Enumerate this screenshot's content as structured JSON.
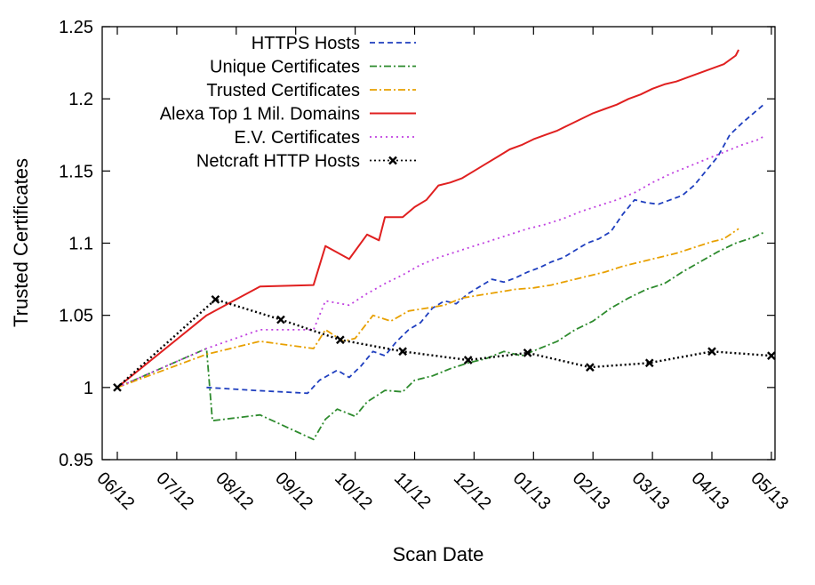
{
  "chart_data": {
    "type": "line",
    "title": "",
    "xlabel": "Scan Date",
    "ylabel": "Trusted Certificates",
    "ylim": [
      0.95,
      1.25
    ],
    "yticks": [
      "0.95",
      "1",
      "1.05",
      "1.1",
      "1.15",
      "1.2",
      "1.25"
    ],
    "x_tick_labels": [
      "06/12",
      "07/12",
      "08/12",
      "09/12",
      "10/12",
      "11/12",
      "12/12",
      "01/13",
      "02/13",
      "03/13",
      "04/13",
      "05/13"
    ],
    "x_unit": "months since 06/12",
    "legend_position": "top-left",
    "grid": false,
    "series": [
      {
        "name": "HTTPS Hosts",
        "color": "#1f3fbf",
        "dash": "dashed",
        "points": [
          [
            1.5,
            1.0
          ],
          [
            2.3,
            0.998
          ],
          [
            3.2,
            0.996
          ],
          [
            3.4,
            1.005
          ],
          [
            3.7,
            1.012
          ],
          [
            3.9,
            1.007
          ],
          [
            4.1,
            1.015
          ],
          [
            4.3,
            1.025
          ],
          [
            4.5,
            1.022
          ],
          [
            4.7,
            1.032
          ],
          [
            4.9,
            1.04
          ],
          [
            5.1,
            1.045
          ],
          [
            5.3,
            1.055
          ],
          [
            5.5,
            1.06
          ],
          [
            5.7,
            1.058
          ],
          [
            5.9,
            1.065
          ],
          [
            6.1,
            1.07
          ],
          [
            6.3,
            1.075
          ],
          [
            6.5,
            1.073
          ],
          [
            6.7,
            1.076
          ],
          [
            6.9,
            1.08
          ],
          [
            7.1,
            1.083
          ],
          [
            7.3,
            1.087
          ],
          [
            7.5,
            1.09
          ],
          [
            7.7,
            1.095
          ],
          [
            7.9,
            1.1
          ],
          [
            8.1,
            1.103
          ],
          [
            8.3,
            1.108
          ],
          [
            8.5,
            1.12
          ],
          [
            8.7,
            1.13
          ],
          [
            8.9,
            1.128
          ],
          [
            9.1,
            1.127
          ],
          [
            9.3,
            1.13
          ],
          [
            9.5,
            1.133
          ],
          [
            9.7,
            1.14
          ],
          [
            9.9,
            1.15
          ],
          [
            10.1,
            1.16
          ],
          [
            10.3,
            1.175
          ],
          [
            10.5,
            1.183
          ],
          [
            10.7,
            1.19
          ],
          [
            10.9,
            1.197
          ]
        ]
      },
      {
        "name": "Unique Certificates",
        "color": "#2e8b2e",
        "dash": "dashdot",
        "points": [
          [
            0,
            1.0
          ],
          [
            1.5,
            1.027
          ],
          [
            1.6,
            0.977
          ],
          [
            2.4,
            0.981
          ],
          [
            3.3,
            0.964
          ],
          [
            3.5,
            0.978
          ],
          [
            3.7,
            0.985
          ],
          [
            4.0,
            0.98
          ],
          [
            4.2,
            0.99
          ],
          [
            4.5,
            0.998
          ],
          [
            4.8,
            0.997
          ],
          [
            5.0,
            1.005
          ],
          [
            5.3,
            1.008
          ],
          [
            5.6,
            1.013
          ],
          [
            5.9,
            1.017
          ],
          [
            6.2,
            1.02
          ],
          [
            6.5,
            1.025
          ],
          [
            6.8,
            1.022
          ],
          [
            7.1,
            1.027
          ],
          [
            7.4,
            1.032
          ],
          [
            7.7,
            1.04
          ],
          [
            8.0,
            1.046
          ],
          [
            8.3,
            1.055
          ],
          [
            8.6,
            1.062
          ],
          [
            8.9,
            1.068
          ],
          [
            9.2,
            1.072
          ],
          [
            9.5,
            1.08
          ],
          [
            9.8,
            1.087
          ],
          [
            10.1,
            1.094
          ],
          [
            10.4,
            1.1
          ],
          [
            10.7,
            1.104
          ],
          [
            10.9,
            1.108
          ]
        ]
      },
      {
        "name": "Trusted Certificates",
        "color": "#e8a000",
        "dash": "dashdot",
        "points": [
          [
            0,
            1.0
          ],
          [
            1.5,
            1.023
          ],
          [
            2.4,
            1.032
          ],
          [
            3.3,
            1.027
          ],
          [
            3.5,
            1.04
          ],
          [
            3.8,
            1.032
          ],
          [
            4.0,
            1.034
          ],
          [
            4.3,
            1.05
          ],
          [
            4.6,
            1.046
          ],
          [
            4.9,
            1.053
          ],
          [
            5.2,
            1.055
          ],
          [
            5.5,
            1.057
          ],
          [
            5.8,
            1.062
          ],
          [
            6.1,
            1.064
          ],
          [
            6.4,
            1.066
          ],
          [
            6.7,
            1.068
          ],
          [
            7.0,
            1.069
          ],
          [
            7.3,
            1.071
          ],
          [
            7.6,
            1.074
          ],
          [
            7.9,
            1.077
          ],
          [
            8.2,
            1.08
          ],
          [
            8.5,
            1.084
          ],
          [
            8.8,
            1.087
          ],
          [
            9.1,
            1.09
          ],
          [
            9.4,
            1.093
          ],
          [
            9.7,
            1.097
          ],
          [
            10.0,
            1.101
          ],
          [
            10.2,
            1.103
          ],
          [
            10.45,
            1.11
          ]
        ]
      },
      {
        "name": "Alexa Top 1 Mil. Domains",
        "color": "#e02020",
        "dash": "solid",
        "points": [
          [
            0,
            1.0
          ],
          [
            1.5,
            1.05
          ],
          [
            2.4,
            1.07
          ],
          [
            3.3,
            1.071
          ],
          [
            3.5,
            1.098
          ],
          [
            3.9,
            1.089
          ],
          [
            4.2,
            1.106
          ],
          [
            4.4,
            1.102
          ],
          [
            4.5,
            1.118
          ],
          [
            4.8,
            1.118
          ],
          [
            5.0,
            1.125
          ],
          [
            5.2,
            1.13
          ],
          [
            5.4,
            1.14
          ],
          [
            5.6,
            1.142
          ],
          [
            5.8,
            1.145
          ],
          [
            6.0,
            1.15
          ],
          [
            6.2,
            1.155
          ],
          [
            6.4,
            1.16
          ],
          [
            6.6,
            1.165
          ],
          [
            6.8,
            1.168
          ],
          [
            7.0,
            1.172
          ],
          [
            7.2,
            1.175
          ],
          [
            7.4,
            1.178
          ],
          [
            7.6,
            1.182
          ],
          [
            7.8,
            1.186
          ],
          [
            8.0,
            1.19
          ],
          [
            8.2,
            1.193
          ],
          [
            8.4,
            1.196
          ],
          [
            8.6,
            1.2
          ],
          [
            8.8,
            1.203
          ],
          [
            9.0,
            1.207
          ],
          [
            9.2,
            1.21
          ],
          [
            9.4,
            1.212
          ],
          [
            9.6,
            1.215
          ],
          [
            9.8,
            1.218
          ],
          [
            10.0,
            1.221
          ],
          [
            10.2,
            1.224
          ],
          [
            10.4,
            1.23
          ],
          [
            10.45,
            1.234
          ]
        ]
      },
      {
        "name": "E.V. Certificates",
        "color": "#c040e0",
        "dash": "dotted",
        "points": [
          [
            0,
            1.0
          ],
          [
            1.5,
            1.027
          ],
          [
            2.4,
            1.04
          ],
          [
            3.3,
            1.04
          ],
          [
            3.5,
            1.06
          ],
          [
            3.9,
            1.057
          ],
          [
            4.2,
            1.065
          ],
          [
            4.5,
            1.072
          ],
          [
            4.8,
            1.078
          ],
          [
            5.1,
            1.085
          ],
          [
            5.4,
            1.09
          ],
          [
            5.7,
            1.094
          ],
          [
            6.0,
            1.098
          ],
          [
            6.3,
            1.102
          ],
          [
            6.6,
            1.106
          ],
          [
            6.9,
            1.11
          ],
          [
            7.2,
            1.113
          ],
          [
            7.5,
            1.117
          ],
          [
            7.8,
            1.122
          ],
          [
            8.1,
            1.126
          ],
          [
            8.4,
            1.13
          ],
          [
            8.7,
            1.135
          ],
          [
            9.0,
            1.142
          ],
          [
            9.3,
            1.148
          ],
          [
            9.6,
            1.153
          ],
          [
            9.9,
            1.158
          ],
          [
            10.2,
            1.163
          ],
          [
            10.5,
            1.168
          ],
          [
            10.8,
            1.172
          ],
          [
            10.9,
            1.175
          ]
        ]
      },
      {
        "name": "Netcraft HTTP Hosts",
        "color": "#000000",
        "dash": "dotted-markers",
        "points": [
          [
            0,
            1.0
          ],
          [
            1.65,
            1.061
          ],
          [
            2.75,
            1.047
          ],
          [
            3.75,
            1.033
          ],
          [
            4.8,
            1.025
          ],
          [
            5.9,
            1.019
          ],
          [
            6.9,
            1.024
          ],
          [
            7.95,
            1.014
          ],
          [
            8.95,
            1.017
          ],
          [
            10.0,
            1.025
          ],
          [
            11.0,
            1.022
          ]
        ]
      }
    ]
  }
}
